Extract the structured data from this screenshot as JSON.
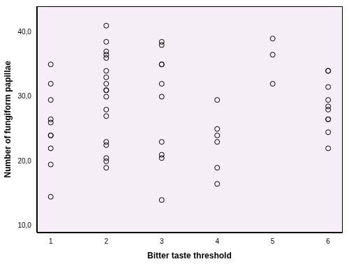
{
  "chart_data": {
    "type": "scatter",
    "x_label": "Bitter taste threshold",
    "y_label": "Number of fungiform papillae",
    "x": [
      1,
      1,
      1,
      1,
      1,
      1,
      1,
      1,
      1,
      1,
      2,
      2,
      2,
      2,
      2,
      2,
      2,
      2,
      2,
      2,
      2,
      2,
      2,
      2,
      2,
      2,
      2,
      2,
      3,
      3,
      3,
      3,
      3,
      3,
      3,
      3,
      3,
      3,
      4,
      4,
      4,
      4,
      4,
      4,
      5,
      5,
      5,
      6,
      6,
      6,
      6,
      6,
      6,
      6,
      6,
      6,
      6
    ],
    "values": [
      35,
      32,
      29.5,
      26.5,
      26,
      24,
      24,
      22,
      19.5,
      14.5,
      41,
      38.5,
      37,
      36.5,
      36,
      34,
      33,
      32,
      31,
      31,
      30,
      28,
      27,
      23,
      22.5,
      20.5,
      20,
      19,
      38.5,
      38,
      35,
      35,
      32,
      30,
      23,
      21,
      20.5,
      14,
      29.5,
      25,
      24,
      23,
      19,
      16.5,
      39,
      36.5,
      32,
      34,
      34,
      31.5,
      29.5,
      28.5,
      28,
      26.5,
      26.5,
      24.5,
      22
    ],
    "color": "#000000",
    "marker": "open circle",
    "xlim": [
      0.75,
      6.25
    ],
    "xticks": [
      1,
      2,
      3,
      4,
      5,
      6
    ],
    "ylim": [
      9,
      44
    ],
    "yticks": [
      {
        "value": 10,
        "label": "10,0"
      },
      {
        "value": 20,
        "label": "20,0"
      },
      {
        "value": 30,
        "label": "30,0"
      },
      {
        "value": 40,
        "label": "40,0"
      }
    ],
    "grid": false
  }
}
